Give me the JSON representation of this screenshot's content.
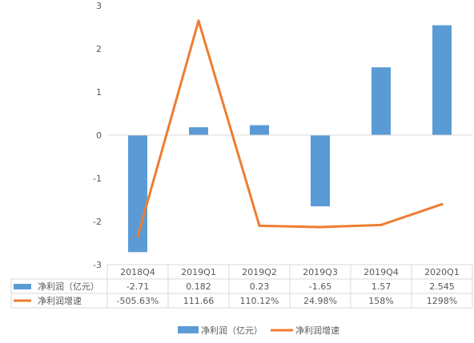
{
  "chart_data": {
    "type": "bar+line",
    "title": "",
    "categories": [
      "2018Q4",
      "2019Q1",
      "2019Q2",
      "2019Q3",
      "2019Q4",
      "2020Q1"
    ],
    "y_axis": {
      "range": [
        -3,
        3
      ],
      "ticks": [
        "3",
        "2",
        "1",
        "0",
        "-1",
        "-2",
        "-3"
      ]
    },
    "grid": false,
    "legend_position": "bottom",
    "series": [
      {
        "name": "净利润（亿元）",
        "type": "bar",
        "color": "#5b9bd5",
        "values": [
          -2.71,
          0.182,
          0.23,
          -1.65,
          1.57,
          2.545
        ],
        "table_labels": [
          "-2.71",
          "0.182",
          "0.23",
          "-1.65",
          "1.57",
          "2.545"
        ]
      },
      {
        "name": "净利润增速",
        "type": "line",
        "color": "#ed7d31",
        "values_on_axis_scale": [
          -2.35,
          2.65,
          -2.1,
          -2.13,
          -2.08,
          -1.6
        ],
        "table_labels": [
          "-505.63%",
          "111.66",
          "110.12%",
          "24.98%",
          "158%",
          "1298%"
        ]
      }
    ]
  }
}
